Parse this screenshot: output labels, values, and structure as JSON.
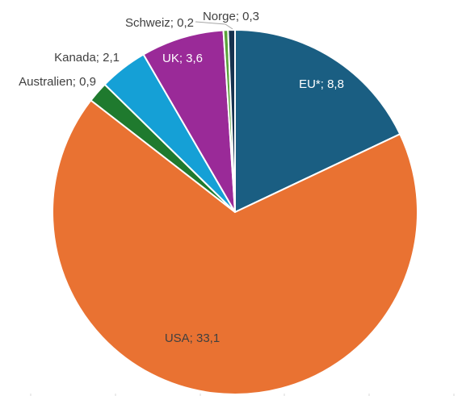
{
  "chart_data": {
    "type": "pie",
    "title": "",
    "start": "12 o'clock",
    "direction": "clockwise",
    "slices": [
      {
        "label": "EU*; 8,8",
        "name": "EU*",
        "value": 8.8,
        "color": "#1a5e82",
        "label_style": "inside-light"
      },
      {
        "label": "USA; 33,1",
        "name": "USA",
        "value": 33.1,
        "color": "#e97232",
        "label_style": "inside-dark"
      },
      {
        "label": "Australien; 0,9",
        "name": "Australien",
        "value": 0.9,
        "color": "#1f7a2e",
        "label_style": "outside"
      },
      {
        "label": "Kanada; 2,1",
        "name": "Kanada",
        "value": 2.1,
        "color": "#15a0d6",
        "label_style": "outside"
      },
      {
        "label": "UK; 3,6",
        "name": "UK",
        "value": 3.6,
        "color": "#9a2a98",
        "label_style": "inside-light"
      },
      {
        "label": "Schweiz; 0,2",
        "name": "Schweiz",
        "value": 0.2,
        "color": "#5aa33a",
        "label_style": "outside"
      },
      {
        "label": "Norge; 0,3",
        "name": "Norge",
        "value": 0.3,
        "color": "#16324f",
        "label_style": "outside"
      }
    ]
  }
}
